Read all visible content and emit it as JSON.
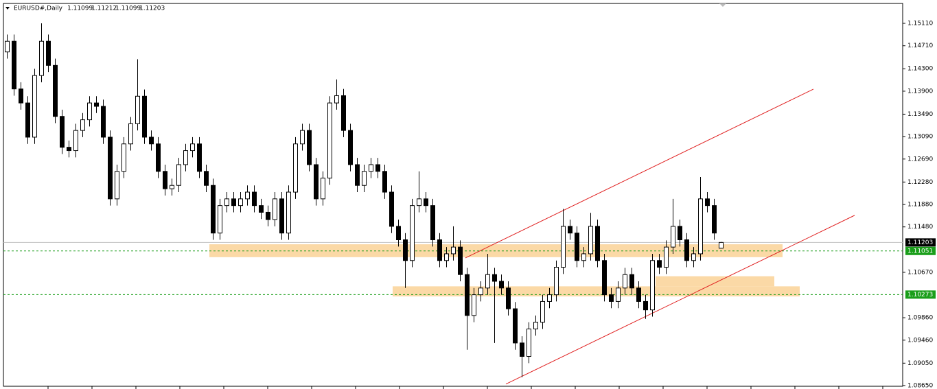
{
  "chart_data": {
    "type": "candlestick",
    "symbol": "EURUSD#,Daily",
    "open": [
      1.146,
      1.1479,
      1.1394,
      1.1369,
      1.1308,
      1.1418,
      1.1479,
      1.1436,
      1.1345,
      1.129,
      1.1284,
      1.132,
      1.1339,
      1.1369,
      1.1363,
      1.1308,
      1.1198,
      1.1247,
      1.1296,
      1.1332,
      1.1381,
      1.1308,
      1.1296,
      1.1247,
      1.1216,
      1.1222,
      1.1259,
      1.1284,
      1.1296,
      1.1247,
      1.1222,
      1.1137,
      1.1186,
      1.1198,
      1.1186,
      1.1198,
      1.121,
      1.1186,
      1.1174,
      1.1161,
      1.1198,
      1.1137,
      1.121,
      1.1296,
      1.132,
      1.1259,
      1.1198,
      1.1235,
      1.1369,
      1.1382,
      1.132,
      1.1259,
      1.1222,
      1.1247,
      1.1259,
      1.1247,
      1.121,
      1.1149,
      1.1125,
      1.1088,
      1.1186,
      1.1198,
      1.1186,
      1.1125,
      1.1088,
      1.11,
      1.1112,
      1.1063,
      1.099,
      1.1027,
      1.1039,
      1.1063,
      1.1051,
      1.1039,
      1.1002,
      1.0941,
      1.0917,
      1.0966,
      1.0978,
      1.1015,
      1.1027,
      1.1076,
      1.1149,
      1.1137,
      1.1088,
      1.11,
      1.1149,
      1.1088,
      1.1027,
      1.1015,
      1.1039,
      1.1063,
      1.1039,
      1.1015,
      1.1,
      1.1088,
      1.1076,
      1.1112,
      1.1149,
      1.1125,
      1.1088,
      1.11,
      1.1198,
      1.1186,
      1.11099
    ],
    "high": [
      1.1491,
      1.1491,
      1.1406,
      1.1381,
      1.143,
      1.1511,
      1.1491,
      1.1448,
      1.1357,
      1.1302,
      1.1332,
      1.1351,
      1.1381,
      1.1381,
      1.1375,
      1.132,
      1.1259,
      1.1308,
      1.1344,
      1.1447,
      1.1393,
      1.132,
      1.1308,
      1.1259,
      1.1234,
      1.1271,
      1.1296,
      1.1308,
      1.1308,
      1.1259,
      1.1234,
      1.1198,
      1.121,
      1.121,
      1.121,
      1.1222,
      1.1222,
      1.1198,
      1.1186,
      1.121,
      1.121,
      1.1222,
      1.1308,
      1.1332,
      1.1332,
      1.1271,
      1.1247,
      1.1381,
      1.1411,
      1.1394,
      1.1332,
      1.1271,
      1.1259,
      1.1271,
      1.1271,
      1.1259,
      1.1222,
      1.1161,
      1.1137,
      1.1198,
      1.1247,
      1.121,
      1.1198,
      1.1137,
      1.1112,
      1.1149,
      1.1124,
      1.1075,
      1.1039,
      1.1051,
      1.11,
      1.1075,
      1.1063,
      1.1051,
      1.1014,
      1.0953,
      1.0978,
      1.099,
      1.1027,
      1.1039,
      1.1088,
      1.118,
      1.1161,
      1.1149,
      1.1112,
      1.1173,
      1.1161,
      1.11,
      1.1039,
      1.1051,
      1.1075,
      1.1075,
      1.1051,
      1.1027,
      1.11,
      1.11,
      1.1124,
      1.1198,
      1.1161,
      1.1137,
      1.1112,
      1.1237,
      1.121,
      1.1198,
      1.11212
    ],
    "low": [
      1.1448,
      1.1382,
      1.1357,
      1.1296,
      1.1296,
      1.1406,
      1.1424,
      1.1333,
      1.1278,
      1.1272,
      1.1272,
      1.1308,
      1.1327,
      1.1351,
      1.1296,
      1.1186,
      1.1186,
      1.1235,
      1.1284,
      1.132,
      1.1296,
      1.1284,
      1.1235,
      1.1204,
      1.1204,
      1.121,
      1.1247,
      1.1272,
      1.1235,
      1.121,
      1.1125,
      1.1125,
      1.1174,
      1.1174,
      1.1174,
      1.1186,
      1.1174,
      1.1162,
      1.1149,
      1.1149,
      1.1125,
      1.1125,
      1.1198,
      1.1284,
      1.1247,
      1.1186,
      1.1186,
      1.1223,
      1.1357,
      1.1308,
      1.1247,
      1.121,
      1.121,
      1.1235,
      1.1235,
      1.1198,
      1.1137,
      1.1113,
      1.1039,
      1.1076,
      1.1174,
      1.1174,
      1.1113,
      1.1076,
      1.1076,
      1.1088,
      1.1051,
      1.0929,
      1.0978,
      1.1015,
      1.1027,
      1.0941,
      1.1027,
      1.099,
      1.0929,
      1.088,
      1.0905,
      1.0954,
      1.0966,
      1.1003,
      1.1015,
      1.1064,
      1.1125,
      1.1076,
      1.1076,
      1.1088,
      1.1076,
      1.1015,
      1.1003,
      1.1003,
      1.1027,
      1.1027,
      1.1003,
      1.0984,
      1.0988,
      1.1064,
      1.1064,
      1.11,
      1.1113,
      1.1076,
      1.1076,
      1.1088,
      1.1174,
      1.1125,
      1.11099
    ],
    "close": [
      1.1479,
      1.1394,
      1.1369,
      1.1308,
      1.1418,
      1.1479,
      1.1436,
      1.1345,
      1.129,
      1.1284,
      1.132,
      1.1339,
      1.1369,
      1.1363,
      1.1308,
      1.1198,
      1.1247,
      1.1296,
      1.1332,
      1.1381,
      1.1308,
      1.1296,
      1.1247,
      1.1216,
      1.1222,
      1.1259,
      1.1284,
      1.1296,
      1.1247,
      1.1222,
      1.1137,
      1.1186,
      1.1198,
      1.1186,
      1.1198,
      1.121,
      1.1186,
      1.1174,
      1.1161,
      1.1198,
      1.1137,
      1.121,
      1.1296,
      1.132,
      1.1259,
      1.1198,
      1.1235,
      1.1369,
      1.1382,
      1.132,
      1.1259,
      1.1222,
      1.1247,
      1.1259,
      1.1247,
      1.121,
      1.1149,
      1.1125,
      1.1088,
      1.1186,
      1.1198,
      1.1186,
      1.1125,
      1.1088,
      1.11,
      1.1112,
      1.1063,
      1.099,
      1.1027,
      1.1039,
      1.1063,
      1.1051,
      1.1039,
      1.1002,
      1.0941,
      1.0917,
      1.0966,
      1.0978,
      1.1015,
      1.1027,
      1.1076,
      1.1149,
      1.1137,
      1.1088,
      1.11,
      1.1149,
      1.1088,
      1.1027,
      1.1015,
      1.1039,
      1.1063,
      1.1039,
      1.1015,
      1.1,
      1.1088,
      1.1076,
      1.1112,
      1.1149,
      1.1125,
      1.1088,
      1.11,
      1.1198,
      1.1186,
      1.1137,
      1.11203
    ],
    "ylim": [
      1.08638,
      1.15465
    ],
    "yticks": [
      {
        "value": 1.1511,
        "label": "1.15110"
      },
      {
        "value": 1.1471,
        "label": "1.14710"
      },
      {
        "value": 1.143,
        "label": "1.14300"
      },
      {
        "value": 1.139,
        "label": "1.13900"
      },
      {
        "value": 1.1349,
        "label": "1.13490"
      },
      {
        "value": 1.1309,
        "label": "1.13090"
      },
      {
        "value": 1.1269,
        "label": "1.12690"
      },
      {
        "value": 1.1228,
        "label": "1.12280"
      },
      {
        "value": 1.1188,
        "label": "1.11880"
      },
      {
        "value": 1.1148,
        "label": "1.11480"
      },
      {
        "value": 1.1067,
        "label": "1.10670"
      },
      {
        "value": 1.0986,
        "label": "1.09860"
      },
      {
        "value": 1.0946,
        "label": "1.09460"
      },
      {
        "value": 1.0905,
        "label": "1.09050"
      },
      {
        "value": 1.0865,
        "label": "1.08650"
      }
    ],
    "levels": [
      1.11051,
      1.10273
    ],
    "level_color": "#1a9e1a",
    "zones": [
      {
        "top": 1.1117,
        "bottom": 1.1094
      },
      {
        "top": 1.106,
        "bottom": 1.1042
      },
      {
        "top": 1.1042,
        "bottom": 1.1024
      }
    ],
    "zone_color": "#fbd9a6",
    "trendlines": [
      {
        "start": 1.10927,
        "end": 1.13936
      },
      {
        "start": 1.08677,
        "end": 1.11686
      }
    ],
    "trendline_color": "#e02020",
    "up_color": "#ffffff",
    "down_color": "#000000"
  }
}
